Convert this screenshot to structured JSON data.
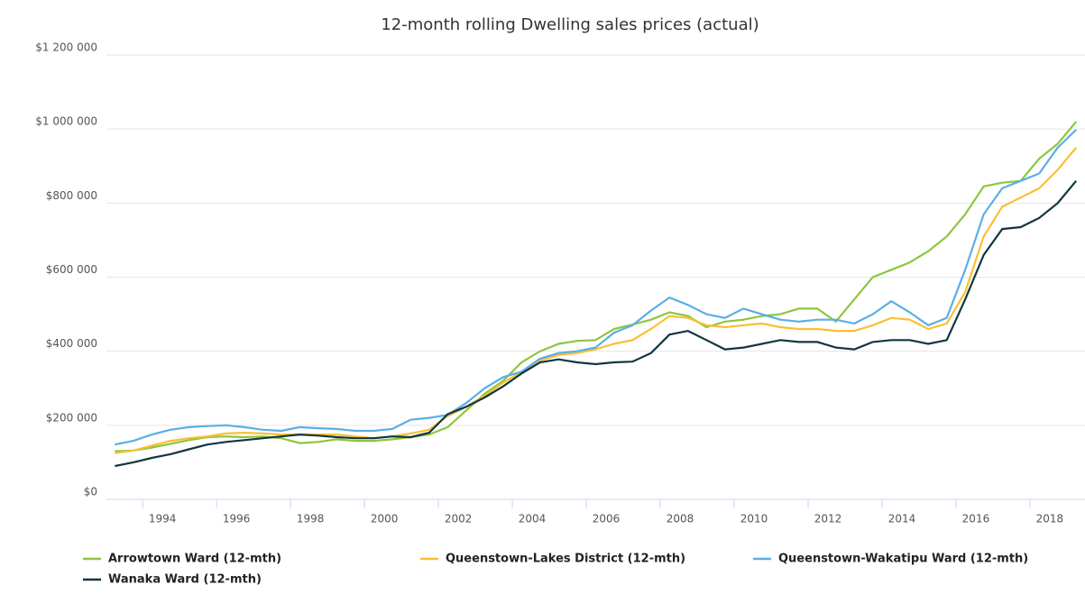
{
  "chart_data": {
    "type": "line",
    "title": "12-month rolling Dwelling sales prices (actual)",
    "x": [
      1993.25,
      1993.75,
      1994.25,
      1994.75,
      1995.25,
      1995.75,
      1996.25,
      1996.75,
      1997.25,
      1997.75,
      1998.25,
      1998.75,
      1999.25,
      1999.75,
      2000.25,
      2000.75,
      2001.25,
      2001.75,
      2002.25,
      2002.75,
      2003.25,
      2003.75,
      2004.25,
      2004.75,
      2005.25,
      2005.75,
      2006.25,
      2006.75,
      2007.25,
      2007.75,
      2008.25,
      2008.75,
      2009.25,
      2009.75,
      2010.25,
      2010.75,
      2011.25,
      2011.75,
      2012.25,
      2012.75,
      2013.25,
      2013.75,
      2014.25,
      2014.75,
      2015.25,
      2015.75,
      2016.25,
      2016.75,
      2017.25,
      2017.75,
      2018.25,
      2018.75,
      2019.25
    ],
    "series": [
      {
        "name": "Arrowtown Ward (12-mth)",
        "color": "#8dc63f",
        "values": [
          130000,
          132000,
          140000,
          150000,
          160000,
          168000,
          170000,
          168000,
          170000,
          165000,
          152000,
          155000,
          162000,
          158000,
          158000,
          162000,
          168000,
          175000,
          195000,
          240000,
          285000,
          320000,
          370000,
          400000,
          420000,
          428000,
          430000,
          460000,
          472000,
          485000,
          505000,
          495000,
          465000,
          480000,
          485000,
          495000,
          500000,
          515000,
          515000,
          480000,
          540000,
          600000,
          620000,
          640000,
          670000,
          710000,
          770000,
          845000,
          855000,
          860000,
          920000,
          960000,
          1020000
        ]
      },
      {
        "name": "Queenstown-Lakes District (12-mth)",
        "color": "#fbbf34",
        "values": [
          125000,
          132000,
          145000,
          158000,
          165000,
          170000,
          178000,
          180000,
          178000,
          175000,
          175000,
          175000,
          175000,
          170000,
          165000,
          170000,
          178000,
          188000,
          225000,
          250000,
          280000,
          315000,
          345000,
          375000,
          390000,
          395000,
          405000,
          420000,
          430000,
          460000,
          495000,
          490000,
          470000,
          465000,
          470000,
          475000,
          465000,
          460000,
          460000,
          455000,
          455000,
          470000,
          490000,
          485000,
          460000,
          475000,
          560000,
          710000,
          790000,
          815000,
          840000,
          890000,
          950000
        ]
      },
      {
        "name": "Queenstown-Wakatipu Ward (12-mth)",
        "color": "#5aaee6",
        "values": [
          148000,
          158000,
          175000,
          188000,
          195000,
          198000,
          200000,
          195000,
          188000,
          185000,
          195000,
          192000,
          190000,
          185000,
          185000,
          190000,
          215000,
          220000,
          228000,
          260000,
          300000,
          330000,
          345000,
          380000,
          395000,
          400000,
          410000,
          450000,
          470000,
          510000,
          545000,
          525000,
          500000,
          490000,
          515000,
          500000,
          485000,
          480000,
          485000,
          485000,
          475000,
          500000,
          535000,
          505000,
          470000,
          490000,
          620000,
          770000,
          840000,
          860000,
          880000,
          950000,
          998000
        ]
      },
      {
        "name": "Wanaka Ward (12-mth)",
        "color": "#113740",
        "values": [
          90000,
          100000,
          112000,
          122000,
          135000,
          148000,
          155000,
          160000,
          165000,
          170000,
          175000,
          172000,
          168000,
          165000,
          165000,
          170000,
          168000,
          180000,
          230000,
          250000,
          275000,
          305000,
          340000,
          370000,
          378000,
          370000,
          365000,
          370000,
          372000,
          395000,
          445000,
          455000,
          430000,
          405000,
          410000,
          420000,
          430000,
          425000,
          425000,
          410000,
          405000,
          425000,
          430000,
          430000,
          420000,
          430000,
          540000,
          660000,
          730000,
          735000,
          760000,
          800000,
          860000
        ]
      }
    ],
    "xlim": [
      1993.02,
      2019.49
    ],
    "xticks": [
      1994,
      1996,
      1998,
      2000,
      2002,
      2004,
      2006,
      2008,
      2010,
      2012,
      2014,
      2016,
      2018
    ],
    "ylim": [
      0,
      1200000
    ],
    "yticks": [
      {
        "value": 0,
        "label": "$0"
      },
      {
        "value": 200000,
        "label": "$200 000"
      },
      {
        "value": 400000,
        "label": "$400 000"
      },
      {
        "value": 600000,
        "label": "$600 000"
      },
      {
        "value": 800000,
        "label": "$800 000"
      },
      {
        "value": 1000000,
        "label": "$1 000 000"
      },
      {
        "value": 1200000,
        "label": "$1 200 000"
      }
    ],
    "grid": true
  }
}
